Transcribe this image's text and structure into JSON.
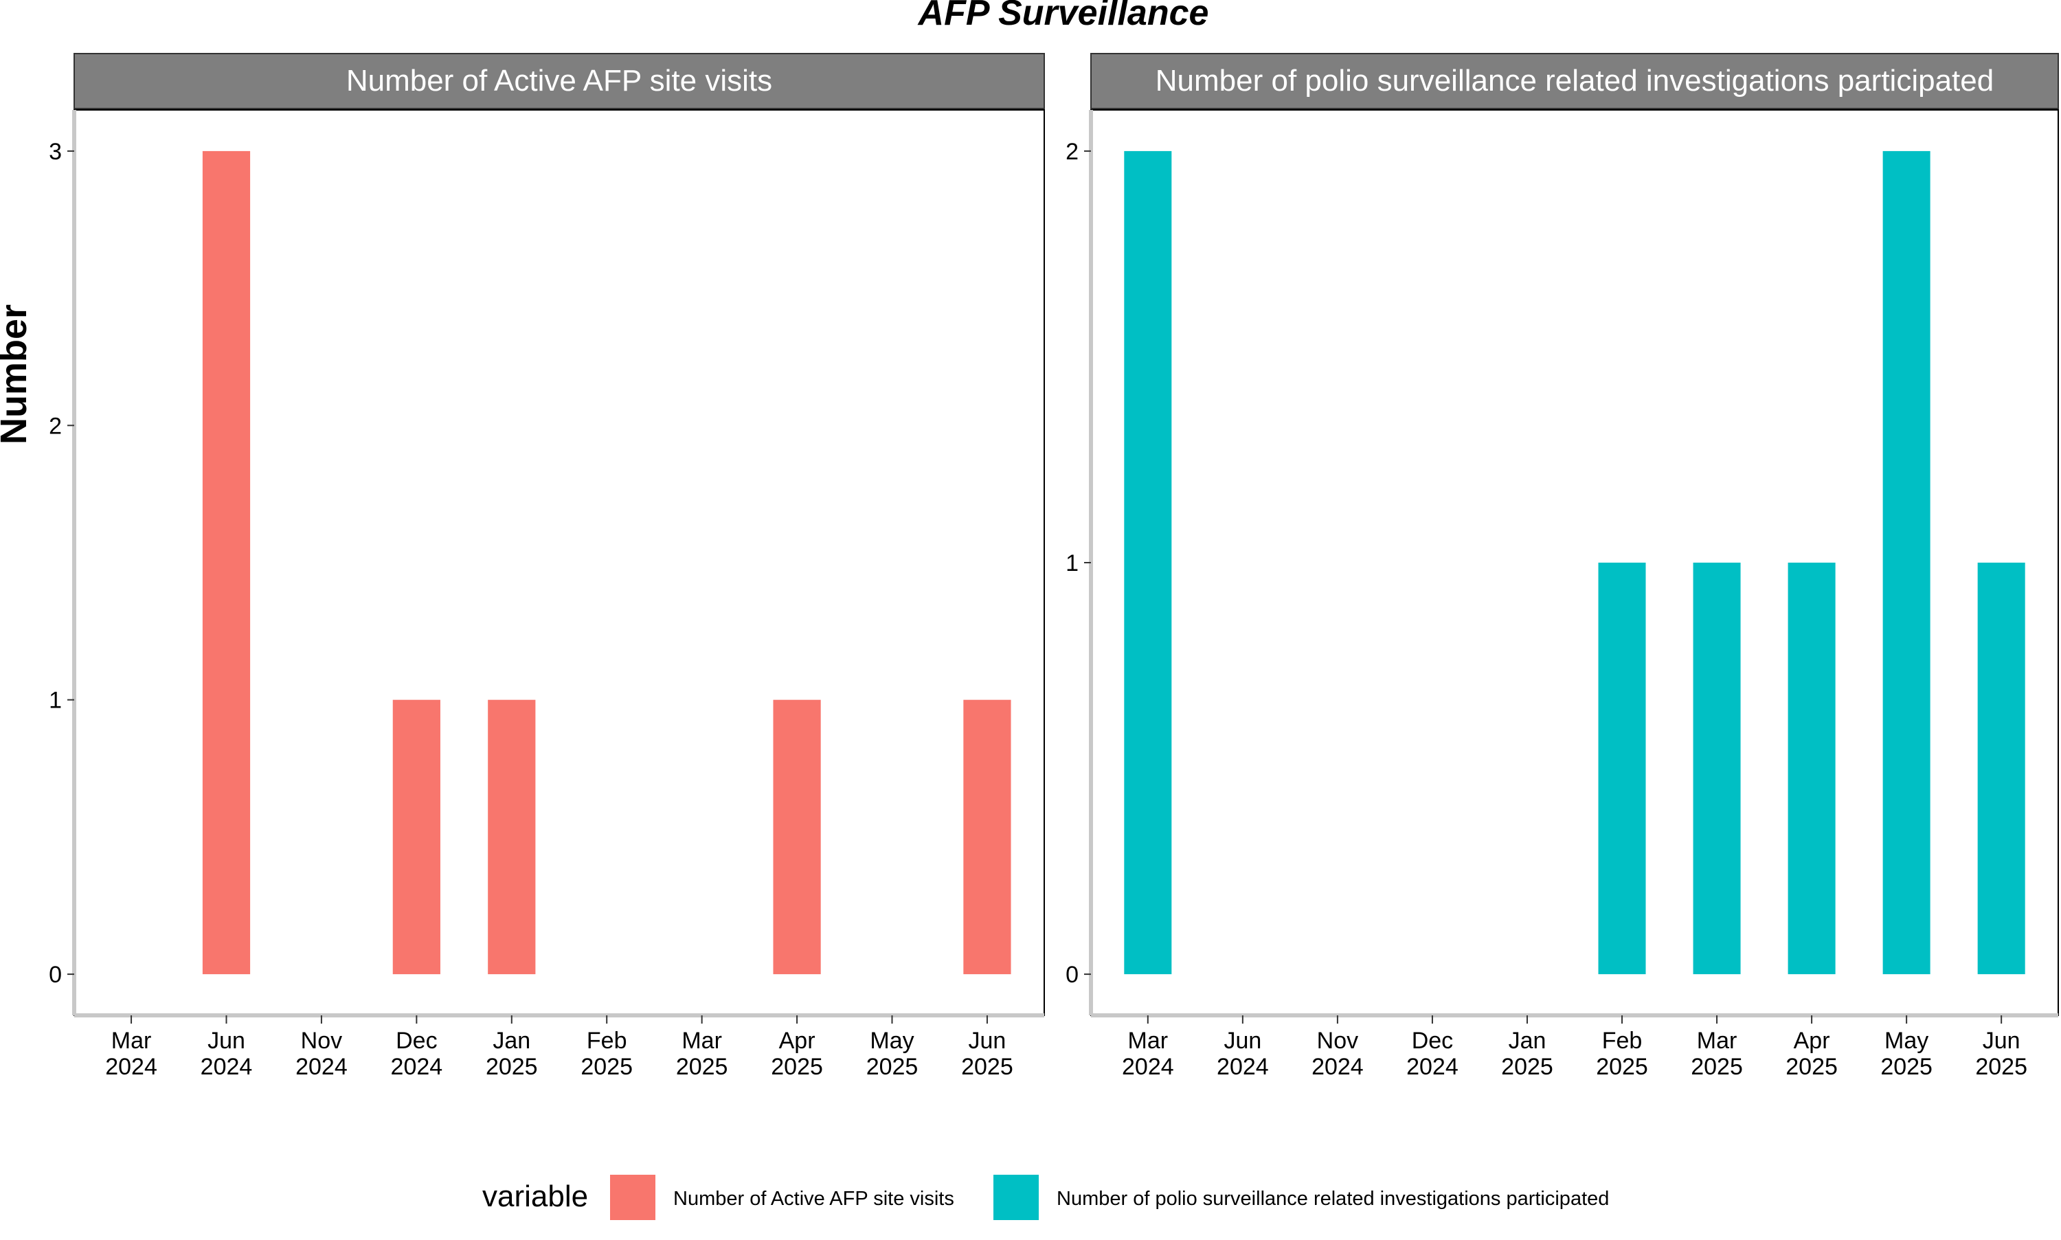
{
  "chart_data": {
    "title": "AFP Surveillance",
    "ylabel": "Number",
    "legend": {
      "title": "variable",
      "placement": "bottom"
    },
    "categories": [
      "Mar\n2024",
      "Jun\n2024",
      "Nov\n2024",
      "Dec\n2024",
      "Jan\n2025",
      "Feb\n2025",
      "Mar\n2025",
      "Apr\n2025",
      "May\n2025",
      "Jun\n2025"
    ],
    "panels": [
      {
        "type": "bar",
        "title": "Number of Active AFP site visits",
        "series_name": "Number of Active AFP site visits",
        "color": "#F8766D",
        "ylim": [
          -0.15,
          3.15
        ],
        "yticks": [
          0,
          1,
          2,
          3
        ],
        "values": [
          0,
          3,
          0,
          1,
          1,
          0,
          0,
          1,
          0,
          1
        ]
      },
      {
        "type": "bar",
        "title": "Number of polio surveillance related investigations participated",
        "series_name": "Number of polio surveillance related investigations participated",
        "color": "#00BFC4",
        "ylim": [
          -0.1,
          2.1
        ],
        "yticks": [
          0,
          1,
          2
        ],
        "values": [
          2,
          0,
          0,
          0,
          0,
          1,
          1,
          1,
          2,
          1
        ]
      }
    ]
  }
}
